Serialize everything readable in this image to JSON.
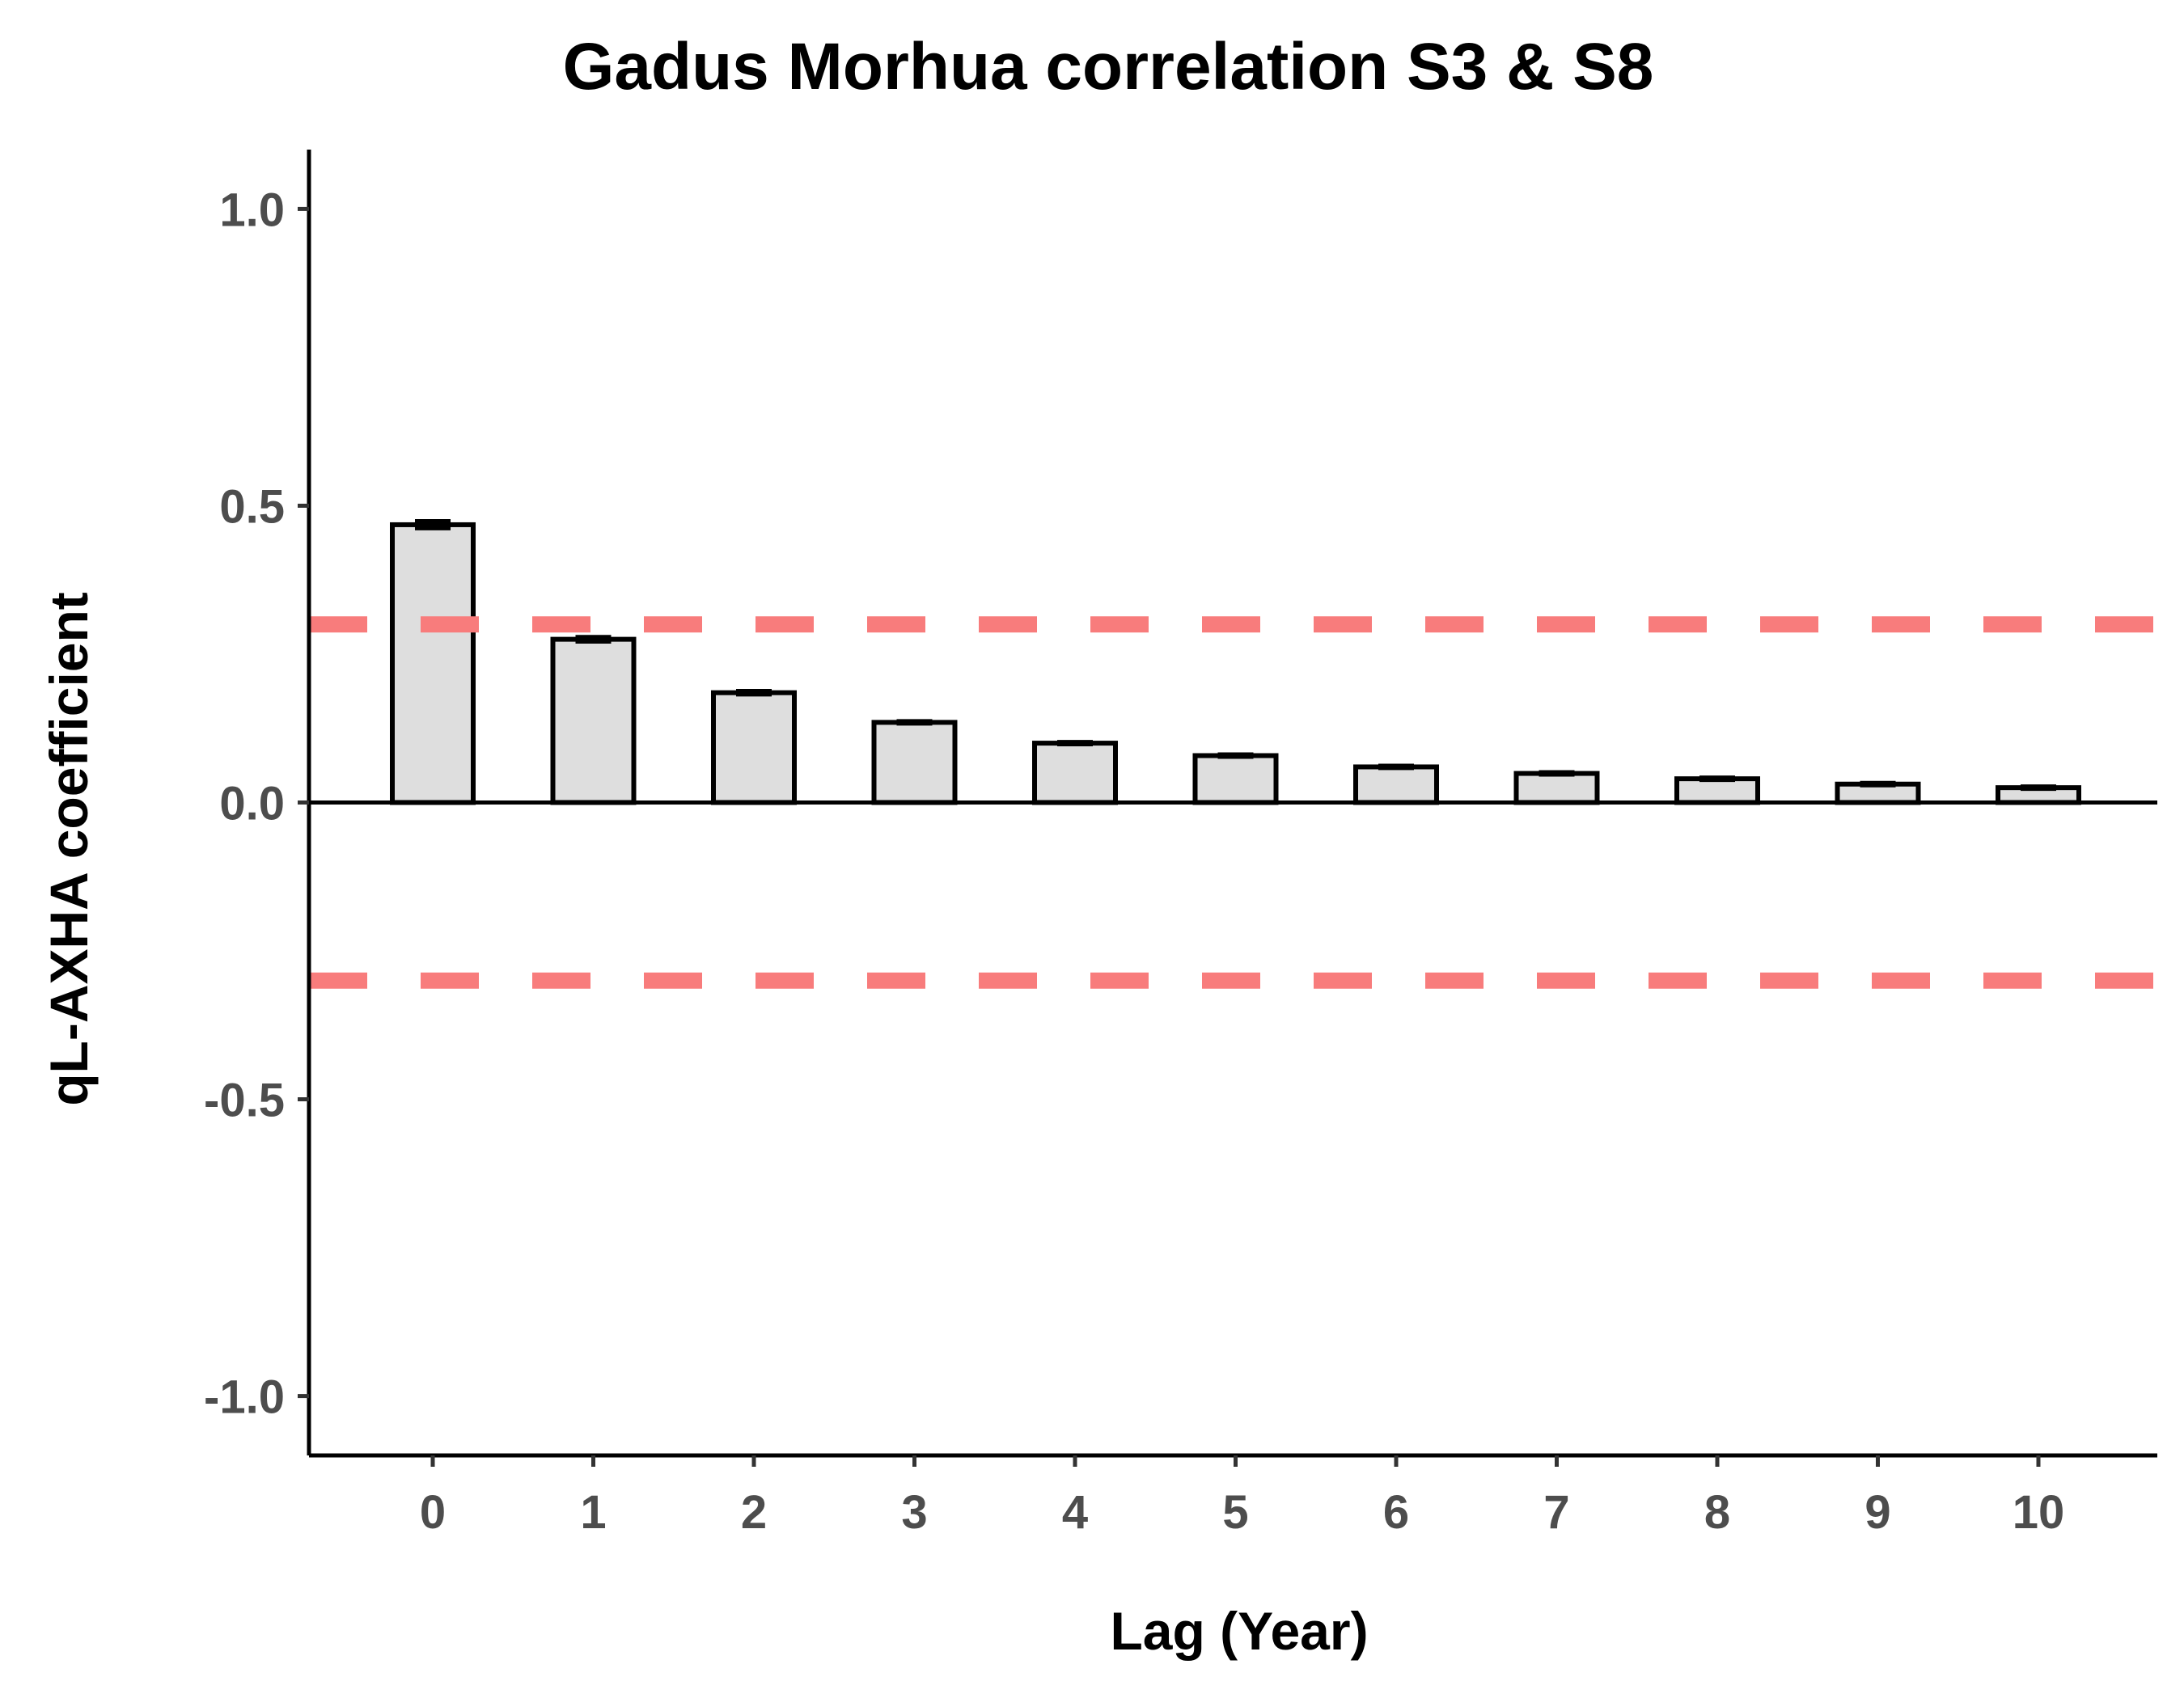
{
  "chart_data": {
    "type": "bar",
    "title": "Gadus Morhua correlation S3 & S8",
    "xlabel": "Lag (Year)",
    "ylabel": "qL-AXHA coefficient",
    "categories": [
      "0",
      "1",
      "2",
      "3",
      "4",
      "5",
      "6",
      "7",
      "8",
      "9",
      "10"
    ],
    "values": [
      0.468,
      0.275,
      0.185,
      0.135,
      0.1,
      0.079,
      0.06,
      0.049,
      0.04,
      0.031,
      0.025
    ],
    "error": [
      0.006,
      0.004,
      0.003,
      0.002,
      0.002,
      0.002,
      0.002,
      0.002,
      0.002,
      0.002,
      0.002
    ],
    "ylim": [
      -1.1,
      1.1
    ],
    "yticks": [
      "-1.0",
      "-0.5",
      "0.0",
      "0.5",
      "1.0"
    ],
    "hlines": [
      0.3,
      -0.3
    ],
    "hline_style": "dashed",
    "colors": {
      "bar_fill": "#dedede",
      "bar_edge": "#000000",
      "hline": "#f87c7c",
      "tick_label": "#4d4d4d"
    },
    "grid": false,
    "legend": "none"
  }
}
